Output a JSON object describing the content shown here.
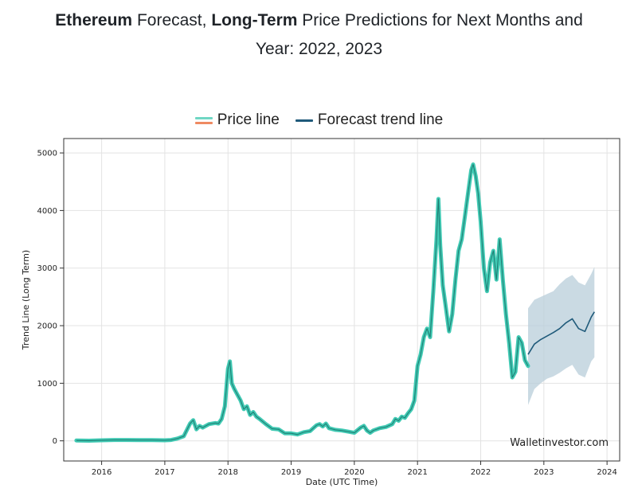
{
  "title": {
    "part1_bold": "Ethereum",
    "part2": " Forecast, ",
    "part3_bold": "Long-Term",
    "part4": " Price Predictions for Next Months and",
    "line2": "Year: 2022, 2023"
  },
  "legend": {
    "price_line": "Price line",
    "forecast_line": "Forecast trend line"
  },
  "watermark": "Walletinvestor.com",
  "colors": {
    "price_line": "#40c9b3",
    "price_swatch_top": "#6fd7c4",
    "price_swatch_bottom": "#ef8a62",
    "price_core": "#1d7a70",
    "forecast_line": "#1f5a7a",
    "forecast_band": "#b8cdd9"
  },
  "chart_data": {
    "type": "line",
    "xlabel": "Date (UTC Time)",
    "ylabel": "Trend Line (Long Term)",
    "xlim": [
      2015.4,
      2024.2
    ],
    "ylim": [
      -350,
      5250
    ],
    "x_ticks": [
      2016,
      2017,
      2018,
      2019,
      2020,
      2021,
      2022,
      2023,
      2024
    ],
    "x_tick_labels": [
      "2016",
      "2017",
      "2018",
      "2019",
      "2020",
      "2021",
      "2022",
      "2023",
      "2024"
    ],
    "y_ticks": [
      0,
      1000,
      2000,
      3000,
      4000,
      5000
    ],
    "y_tick_labels": [
      "0",
      "1000",
      "2000",
      "3000",
      "4000",
      "5000"
    ],
    "grid": true,
    "legend_position": "top-center",
    "series": [
      {
        "name": "Price line",
        "x": [
          2015.6,
          2015.8,
          2016.0,
          2016.2,
          2016.4,
          2016.6,
          2016.8,
          2017.0,
          2017.1,
          2017.2,
          2017.3,
          2017.4,
          2017.45,
          2017.5,
          2017.55,
          2017.6,
          2017.7,
          2017.8,
          2017.85,
          2017.9,
          2017.95,
          2018.0,
          2018.03,
          2018.06,
          2018.1,
          2018.15,
          2018.2,
          2018.25,
          2018.3,
          2018.35,
          2018.4,
          2018.45,
          2018.5,
          2018.6,
          2018.7,
          2018.8,
          2018.9,
          2019.0,
          2019.1,
          2019.2,
          2019.3,
          2019.4,
          2019.45,
          2019.5,
          2019.55,
          2019.6,
          2019.7,
          2019.8,
          2019.9,
          2020.0,
          2020.1,
          2020.15,
          2020.2,
          2020.25,
          2020.3,
          2020.4,
          2020.5,
          2020.6,
          2020.65,
          2020.7,
          2020.75,
          2020.8,
          2020.85,
          2020.9,
          2020.95,
          2021.0,
          2021.05,
          2021.1,
          2021.15,
          2021.2,
          2021.25,
          2021.3,
          2021.33,
          2021.36,
          2021.4,
          2021.45,
          2021.5,
          2021.55,
          2021.6,
          2021.65,
          2021.7,
          2021.75,
          2021.8,
          2021.85,
          2021.88,
          2021.92,
          2021.96,
          2022.0,
          2022.05,
          2022.1,
          2022.15,
          2022.2,
          2022.25,
          2022.3,
          2022.35,
          2022.4,
          2022.45,
          2022.5,
          2022.55,
          2022.6,
          2022.65,
          2022.7,
          2022.75
        ],
        "values": [
          5,
          3,
          10,
          15,
          15,
          12,
          12,
          10,
          15,
          40,
          80,
          300,
          360,
          200,
          260,
          230,
          290,
          310,
          300,
          380,
          600,
          1250,
          1380,
          1000,
          900,
          800,
          700,
          550,
          600,
          450,
          500,
          420,
          380,
          290,
          210,
          200,
          130,
          130,
          110,
          150,
          170,
          270,
          290,
          250,
          300,
          220,
          190,
          180,
          160,
          140,
          230,
          260,
          180,
          140,
          180,
          220,
          240,
          290,
          380,
          350,
          420,
          400,
          480,
          550,
          700,
          1300,
          1500,
          1800,
          1950,
          1800,
          2600,
          3500,
          4200,
          3400,
          2700,
          2300,
          1900,
          2200,
          2800,
          3300,
          3500,
          3900,
          4300,
          4700,
          4800,
          4600,
          4300,
          3800,
          3000,
          2600,
          3100,
          3300,
          2800,
          3500,
          2800,
          2200,
          1700,
          1100,
          1200,
          1800,
          1700,
          1400,
          1300
        ]
      },
      {
        "name": "Forecast trend line",
        "x": [
          2022.75,
          2022.85,
          2022.95,
          2023.05,
          2023.15,
          2023.25,
          2023.35,
          2023.45,
          2023.55,
          2023.65,
          2023.75,
          2023.8
        ],
        "values": [
          1500,
          1680,
          1760,
          1820,
          1880,
          1950,
          2050,
          2120,
          1950,
          1900,
          2150,
          2240
        ],
        "band_upper": [
          2300,
          2450,
          2500,
          2550,
          2600,
          2720,
          2820,
          2880,
          2750,
          2700,
          2900,
          3020
        ],
        "band_lower": [
          620,
          900,
          1000,
          1080,
          1120,
          1180,
          1260,
          1320,
          1150,
          1100,
          1380,
          1450
        ]
      }
    ]
  }
}
